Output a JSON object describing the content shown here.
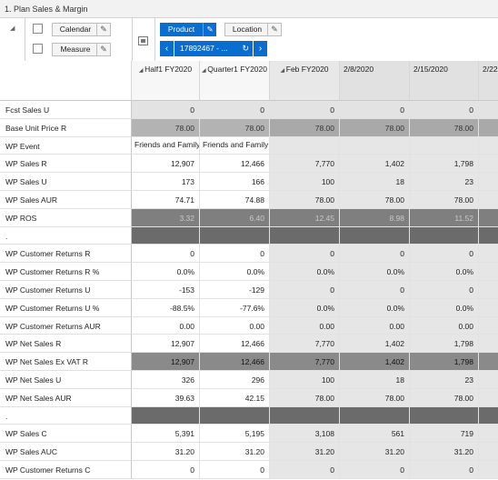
{
  "window": {
    "title": "1. Plan Sales & Margin"
  },
  "toolbar": {
    "calendar_label": "Calendar",
    "measure_label": "Measure",
    "product_label": "Product",
    "location_label": "Location",
    "product_member": "17892467 - ..."
  },
  "columns": [
    {
      "label": "Half1 FY2020",
      "icon": "caret-down-icon"
    },
    {
      "label": "Quarter1 FY2020",
      "icon": "caret-down-icon"
    },
    {
      "label": "Feb FY2020",
      "icon": "caret-down-icon"
    },
    {
      "label": "2/8/2020"
    },
    {
      "label": "2/15/2020"
    },
    {
      "label": "2/22"
    }
  ],
  "rows": [
    {
      "label": "Fcst Sales U",
      "values": [
        "0",
        "0",
        "0",
        "0",
        "0",
        ""
      ],
      "style": "grey"
    },
    {
      "label": "Base Unit Price R",
      "values": [
        "78.00",
        "78.00",
        "78.00",
        "78.00",
        "78.00",
        ""
      ],
      "style": "darkgrey"
    },
    {
      "label": "WP Event",
      "values": [
        "Friends and Family",
        "Friends and Family",
        "",
        "",
        "",
        ""
      ],
      "style": "event"
    },
    {
      "label": "WP Sales R",
      "values": [
        "12,907",
        "12,466",
        "7,770",
        "1,402",
        "1,798",
        ""
      ],
      "style": "normal"
    },
    {
      "label": "WP Sales U",
      "values": [
        "173",
        "166",
        "100",
        "18",
        "23",
        ""
      ],
      "style": "normal"
    },
    {
      "label": "WP Sales AUR",
      "values": [
        "74.71",
        "74.88",
        "78.00",
        "78.00",
        "78.00",
        ""
      ],
      "style": "normal"
    },
    {
      "label": "WP ROS",
      "values": [
        "3.32",
        "6.40",
        "12.45",
        "8.98",
        "11.52",
        ""
      ],
      "style": "dark"
    },
    {
      "label": ".",
      "values": [
        "",
        "",
        "",
        "",
        "",
        ""
      ],
      "style": "separator"
    },
    {
      "label": "WP Customer Returns R",
      "values": [
        "0",
        "0",
        "0",
        "0",
        "0",
        ""
      ],
      "style": "normal"
    },
    {
      "label": "WP Customer Returns R %",
      "values": [
        "0.0%",
        "0.0%",
        "0.0%",
        "0.0%",
        "0.0%",
        ""
      ],
      "style": "normal"
    },
    {
      "label": "WP Customer Returns U",
      "values": [
        "-153",
        "-129",
        "0",
        "0",
        "0",
        ""
      ],
      "style": "normal"
    },
    {
      "label": "WP Customer Returns U %",
      "values": [
        "-88.5%",
        "-77.6%",
        "0.0%",
        "0.0%",
        "0.0%",
        ""
      ],
      "style": "normal"
    },
    {
      "label": "WP Customer Returns AUR",
      "values": [
        "0.00",
        "0.00",
        "0.00",
        "0.00",
        "0.00",
        ""
      ],
      "style": "normal"
    },
    {
      "label": "WP Net Sales R",
      "values": [
        "12,907",
        "12,466",
        "7,770",
        "1,402",
        "1,798",
        ""
      ],
      "style": "normal"
    },
    {
      "label": "WP Net Sales Ex VAT R",
      "values": [
        "12,907",
        "12,466",
        "7,770",
        "1,402",
        "1,798",
        ""
      ],
      "style": "dark2"
    },
    {
      "label": "WP Net Sales U",
      "values": [
        "326",
        "296",
        "100",
        "18",
        "23",
        ""
      ],
      "style": "normal"
    },
    {
      "label": "WP Net Sales AUR",
      "values": [
        "39.63",
        "42.15",
        "78.00",
        "78.00",
        "78.00",
        ""
      ],
      "style": "normal"
    },
    {
      "label": ".",
      "values": [
        "",
        "",
        "",
        "",
        "",
        ""
      ],
      "style": "separator"
    },
    {
      "label": "WP Sales C",
      "values": [
        "5,391",
        "5,195",
        "3,108",
        "561",
        "719",
        ""
      ],
      "style": "normal"
    },
    {
      "label": "WP Sales AUC",
      "values": [
        "31.20",
        "31.20",
        "31.20",
        "31.20",
        "31.20",
        ""
      ],
      "style": "normal"
    },
    {
      "label": "WP Customer Returns C",
      "values": [
        "0",
        "0",
        "0",
        "0",
        "0",
        ""
      ],
      "style": "normal"
    }
  ],
  "colors": {
    "accent": "#0a6ed1",
    "cell_white": "#ffffff",
    "cell_grey": "#e3e3e3",
    "cell_darkgrey": "#a6a6a6",
    "cell_dark": "#7f7f7f",
    "separator": "#6b6b6b",
    "header_grey": "#e1e1e1"
  }
}
